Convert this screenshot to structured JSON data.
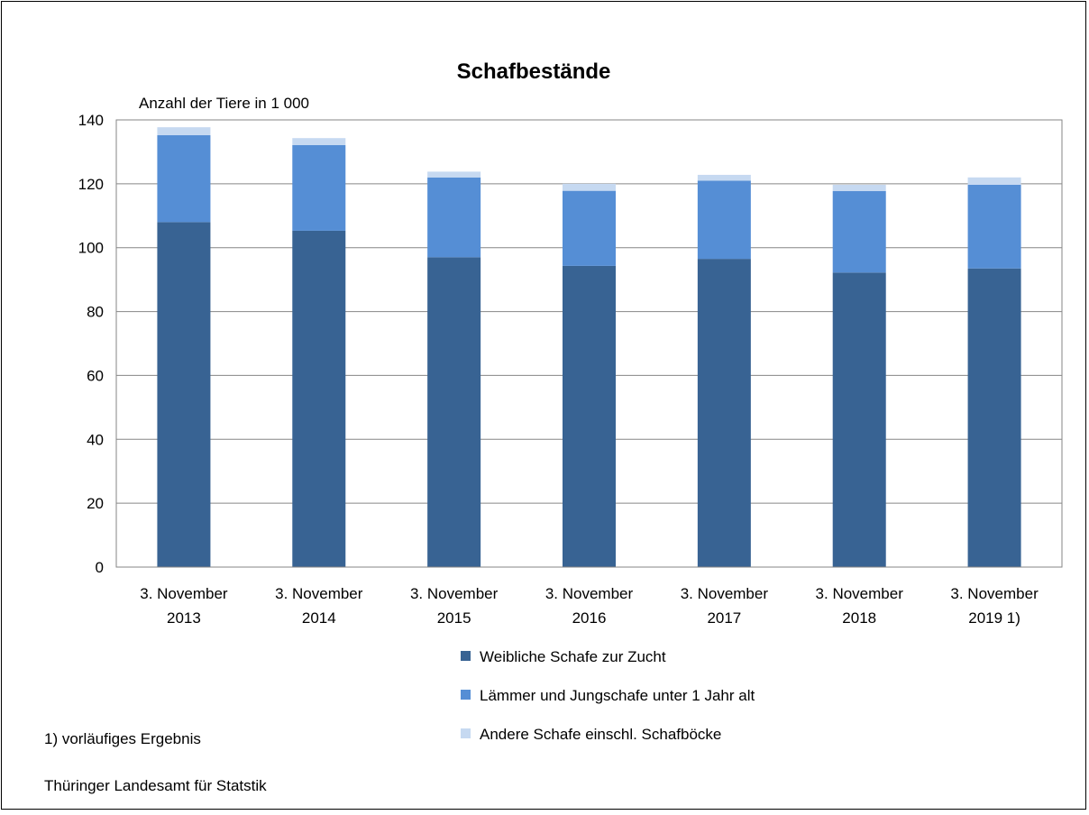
{
  "chart_data": {
    "type": "bar",
    "stacked": true,
    "title": "Schafbestände",
    "ylabel": "Anzahl der Tiere  in 1 000",
    "ylim": [
      0,
      140
    ],
    "yticks": [
      0,
      20,
      40,
      60,
      80,
      100,
      120,
      140
    ],
    "grid": true,
    "legend_position": "bottom",
    "categories": [
      [
        "3. November",
        "2013"
      ],
      [
        "3. November",
        "2014"
      ],
      [
        "3. November",
        "2015"
      ],
      [
        "3. November",
        "2016"
      ],
      [
        "3. November",
        "2017"
      ],
      [
        "3. November",
        "2018"
      ],
      [
        "3. November",
        "2019 1)"
      ]
    ],
    "series": [
      {
        "name": "Weibliche Schafe zur Zucht",
        "color": "#386393",
        "values": [
          108,
          105.3,
          97,
          94.3,
          96.5,
          92.2,
          93.5
        ]
      },
      {
        "name": "Lämmer und Jungschafe unter 1 Jahr alt",
        "color": "#558ed5",
        "values": [
          27.2,
          26.8,
          25,
          23.5,
          24.5,
          25.5,
          26.2
        ]
      },
      {
        "name": "Andere Schafe einschl. Schafböcke",
        "color": "#c6d9f1",
        "values": [
          2.5,
          2.2,
          1.8,
          2.2,
          1.8,
          2.0,
          2.3
        ]
      }
    ]
  },
  "footnote": "1) vorläufiges Ergebnis",
  "source": "Thüringer Landesamt für Statstik"
}
